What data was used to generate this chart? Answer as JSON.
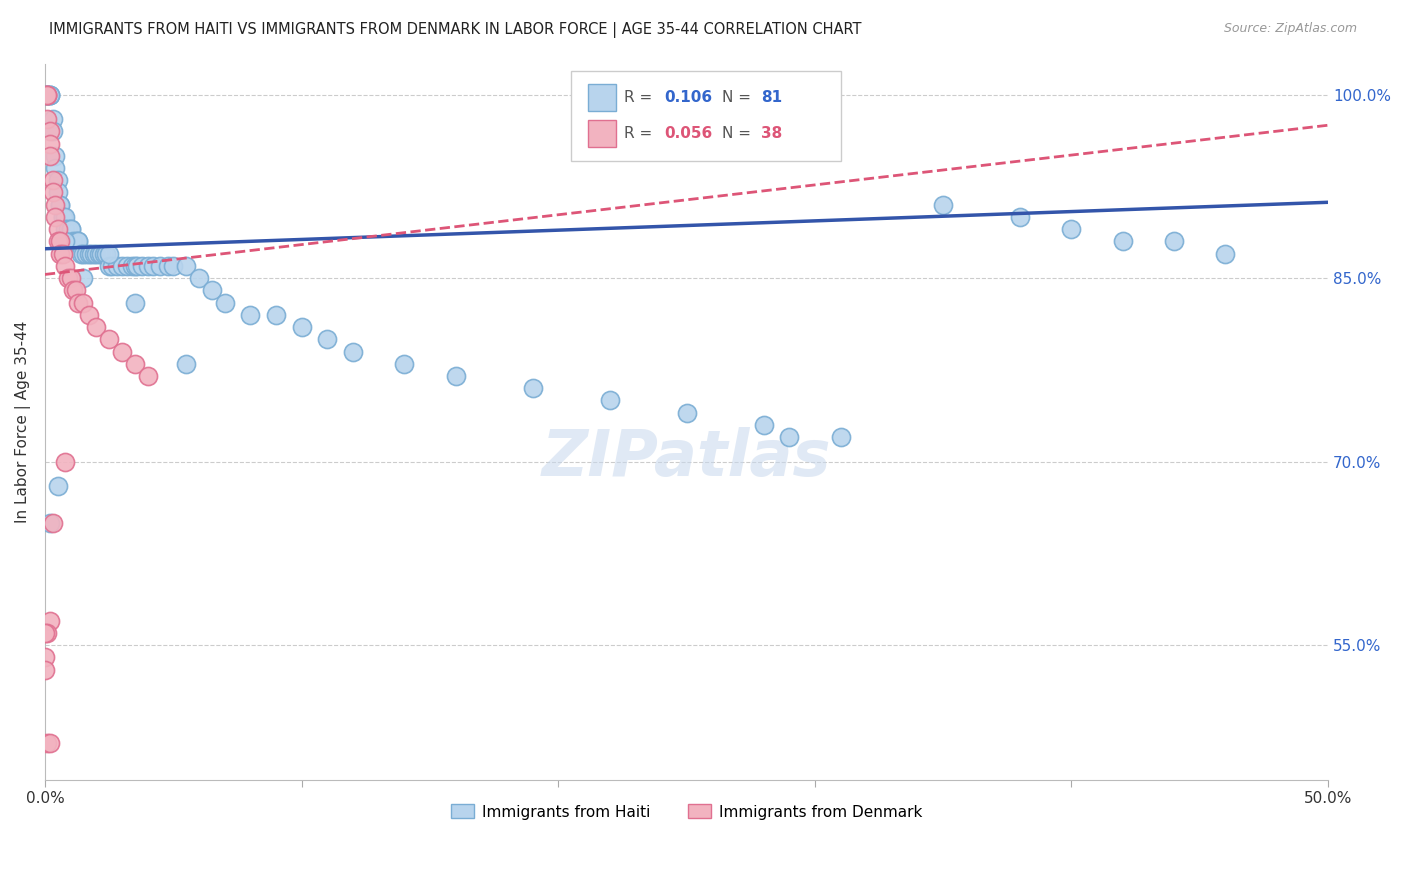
{
  "title": "IMMIGRANTS FROM HAITI VS IMMIGRANTS FROM DENMARK IN LABOR FORCE | AGE 35-44 CORRELATION CHART",
  "source": "Source: ZipAtlas.com",
  "ylabel": "In Labor Force | Age 35-44",
  "xlim": [
    0.0,
    0.5
  ],
  "ylim": [
    0.44,
    1.025
  ],
  "yticks_right": [
    0.55,
    0.7,
    0.85,
    1.0
  ],
  "ytick_labels_right": [
    "55.0%",
    "70.0%",
    "85.0%",
    "100.0%"
  ],
  "legend_haiti": "Immigrants from Haiti",
  "legend_denmark": "Immigrants from Denmark",
  "R_haiti": 0.106,
  "N_haiti": 81,
  "R_denmark": 0.056,
  "N_denmark": 38,
  "haiti_color": "#b8d4ed",
  "haiti_edge_color": "#7aadd4",
  "denmark_color": "#f2b3c0",
  "denmark_edge_color": "#e07090",
  "trend_haiti_color": "#3355aa",
  "trend_denmark_color": "#dd5577",
  "watermark": "ZIPatlas",
  "haiti_trend_x0": 0.0,
  "haiti_trend_y0": 0.874,
  "haiti_trend_x1": 0.5,
  "haiti_trend_y1": 0.912,
  "denmark_trend_x0": 0.0,
  "denmark_trend_y0": 0.853,
  "denmark_trend_x1": 0.5,
  "denmark_trend_y1": 0.975,
  "haiti_x": [
    0.001,
    0.001,
    0.001,
    0.002,
    0.002,
    0.002,
    0.003,
    0.003,
    0.004,
    0.004,
    0.005,
    0.005,
    0.006,
    0.006,
    0.007,
    0.007,
    0.008,
    0.008,
    0.009,
    0.01,
    0.01,
    0.011,
    0.012,
    0.013,
    0.013,
    0.014,
    0.015,
    0.016,
    0.017,
    0.018,
    0.019,
    0.02,
    0.021,
    0.022,
    0.023,
    0.024,
    0.025,
    0.026,
    0.028,
    0.03,
    0.032,
    0.034,
    0.035,
    0.036,
    0.038,
    0.04,
    0.042,
    0.045,
    0.048,
    0.05,
    0.055,
    0.06,
    0.065,
    0.07,
    0.08,
    0.09,
    0.1,
    0.11,
    0.12,
    0.14,
    0.16,
    0.19,
    0.22,
    0.25,
    0.28,
    0.31,
    0.35,
    0.38,
    0.4,
    0.29,
    0.005,
    0.002,
    0.035,
    0.055,
    0.025,
    0.015,
    0.008,
    0.42,
    0.44,
    0.46,
    0.0
  ],
  "haiti_y": [
    1.0,
    1.0,
    1.0,
    1.0,
    1.0,
    1.0,
    0.98,
    0.97,
    0.95,
    0.94,
    0.93,
    0.92,
    0.91,
    0.91,
    0.9,
    0.9,
    0.9,
    0.89,
    0.89,
    0.89,
    0.89,
    0.88,
    0.88,
    0.88,
    0.88,
    0.87,
    0.87,
    0.87,
    0.87,
    0.87,
    0.87,
    0.87,
    0.87,
    0.87,
    0.87,
    0.87,
    0.86,
    0.86,
    0.86,
    0.86,
    0.86,
    0.86,
    0.86,
    0.86,
    0.86,
    0.86,
    0.86,
    0.86,
    0.86,
    0.86,
    0.86,
    0.85,
    0.84,
    0.83,
    0.82,
    0.82,
    0.81,
    0.8,
    0.79,
    0.78,
    0.77,
    0.76,
    0.75,
    0.74,
    0.73,
    0.72,
    0.91,
    0.9,
    0.89,
    0.72,
    0.68,
    0.65,
    0.83,
    0.78,
    0.87,
    0.85,
    0.88,
    0.88,
    0.88,
    0.87,
    1.0
  ],
  "denmark_x": [
    0.001,
    0.001,
    0.001,
    0.001,
    0.002,
    0.002,
    0.002,
    0.003,
    0.003,
    0.004,
    0.004,
    0.005,
    0.005,
    0.006,
    0.006,
    0.007,
    0.008,
    0.009,
    0.01,
    0.011,
    0.012,
    0.013,
    0.015,
    0.017,
    0.02,
    0.025,
    0.03,
    0.035,
    0.04,
    0.008,
    0.003,
    0.002,
    0.001,
    0.0,
    0.0,
    0.0,
    0.001,
    0.002
  ],
  "denmark_y": [
    1.0,
    1.0,
    1.0,
    0.98,
    0.97,
    0.96,
    0.95,
    0.93,
    0.92,
    0.91,
    0.9,
    0.89,
    0.88,
    0.88,
    0.87,
    0.87,
    0.86,
    0.85,
    0.85,
    0.84,
    0.84,
    0.83,
    0.83,
    0.82,
    0.81,
    0.8,
    0.79,
    0.78,
    0.77,
    0.7,
    0.65,
    0.57,
    0.56,
    0.56,
    0.54,
    0.53,
    0.47,
    0.47
  ]
}
